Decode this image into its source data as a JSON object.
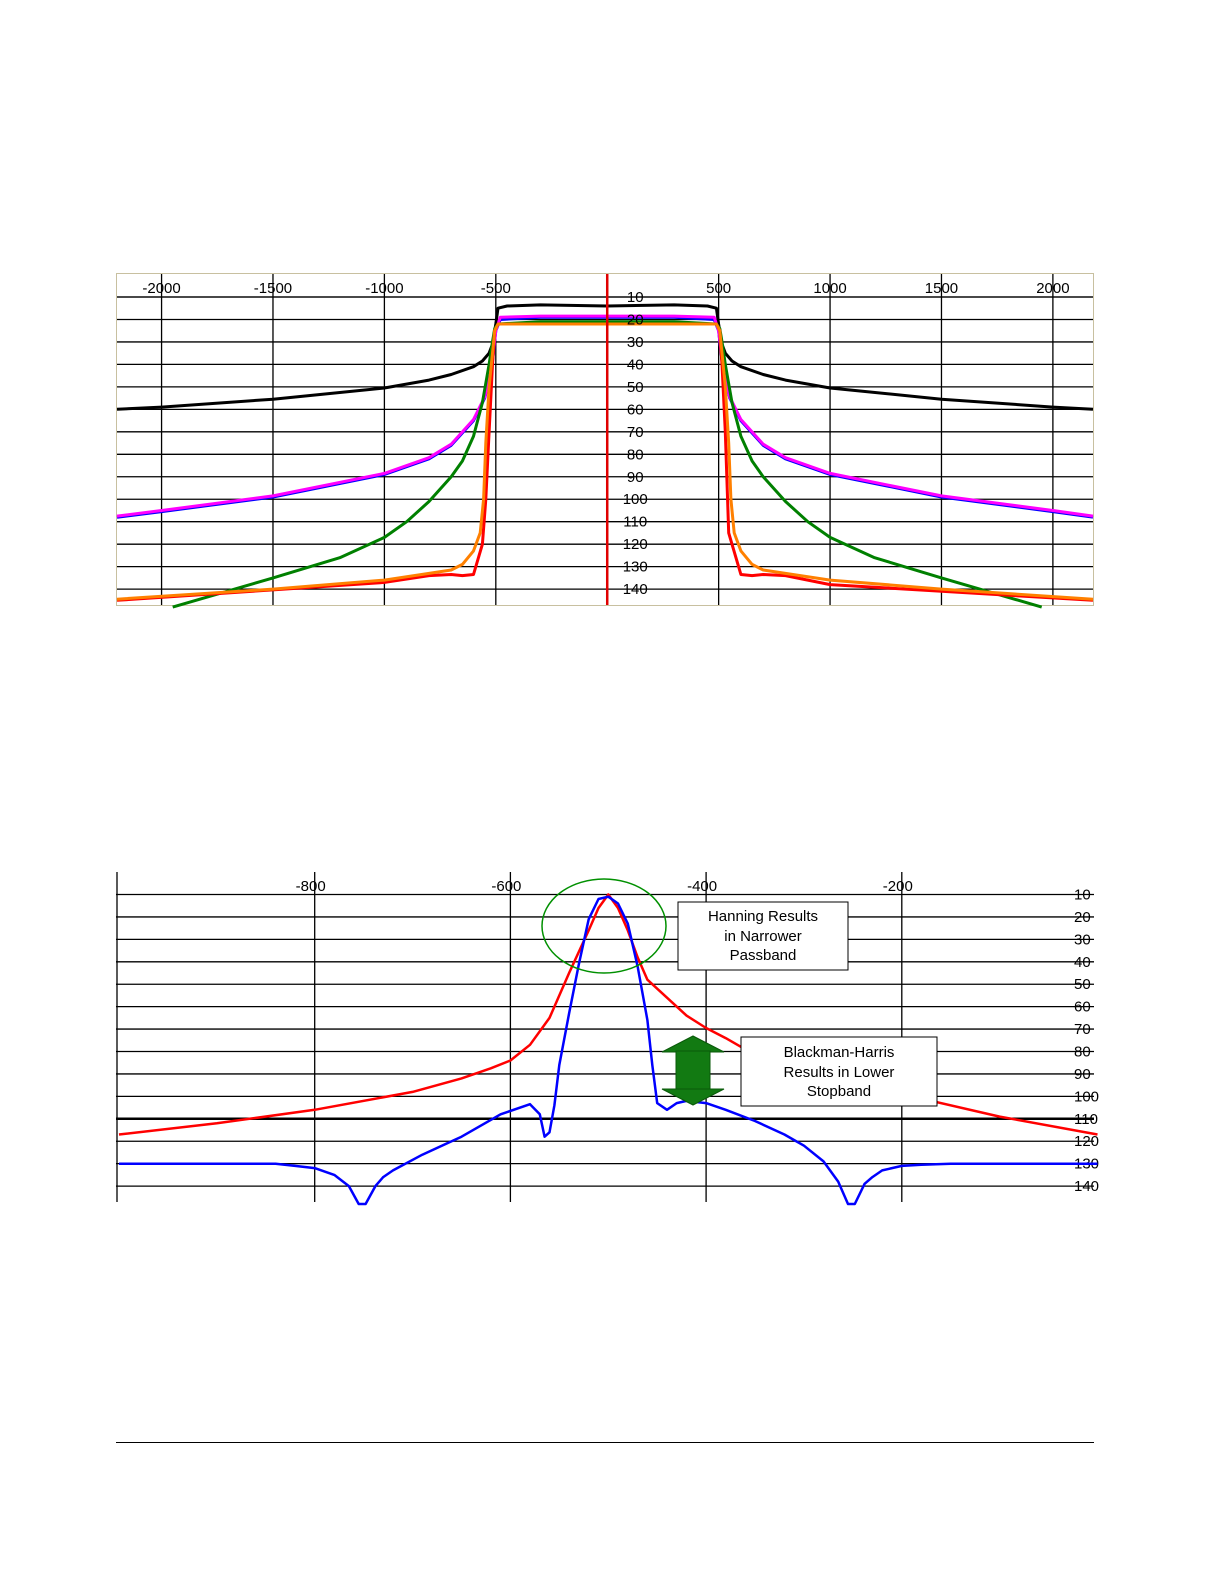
{
  "page": {
    "charts": [
      {
        "id": "top",
        "description_hidden": true
      },
      {
        "id": "bottom",
        "description_hidden": true
      }
    ]
  },
  "chart_data": [
    {
      "type": "line",
      "title": "",
      "xlabel": "",
      "ylabel": "",
      "xlim": [
        -2200,
        2180
      ],
      "ylim": [
        0,
        148
      ],
      "x_ticks": [
        -2000,
        -1500,
        -1000,
        -500,
        500,
        1000,
        1500,
        2000
      ],
      "x_tick_labels": [
        "-2000",
        "-1500",
        "-1000",
        "-500",
        "500",
        "1000",
        "1500",
        "2000"
      ],
      "y_ticks": [
        10,
        20,
        30,
        40,
        50,
        60,
        70,
        80,
        90,
        100,
        110,
        120,
        130,
        140
      ],
      "y_tick_labels": [
        "10",
        "20",
        "30",
        "40",
        "50",
        "60",
        "70",
        "80",
        "90",
        "100",
        "110",
        "120",
        "130",
        "140"
      ],
      "y_inverted": true,
      "grid": true,
      "center_marker": {
        "x": 0,
        "color": "#e00000"
      },
      "series": [
        {
          "color": "#000000",
          "x": [
            -2200,
            -2000,
            -1500,
            -1000,
            -800,
            -700,
            -600,
            -560,
            -530,
            -515,
            -500,
            -490,
            -450,
            -300,
            0,
            300,
            450,
            490,
            500,
            515,
            530,
            560,
            600,
            700,
            800,
            1000,
            1500,
            2000,
            2180
          ],
          "y": [
            60,
            59,
            55.5,
            50.5,
            47,
            44.5,
            41,
            38.5,
            35,
            31,
            22,
            15,
            14,
            13.5,
            14,
            13.5,
            14,
            15,
            22,
            31,
            35,
            38.5,
            41,
            44.5,
            47,
            50.5,
            55.5,
            59,
            60
          ]
        },
        {
          "color": "#0000ff",
          "x": [
            -2200,
            -2000,
            -1500,
            -1000,
            -800,
            -700,
            -600,
            -550,
            -520,
            -510,
            -500,
            -480,
            -300,
            0,
            300,
            480,
            500,
            510,
            520,
            550,
            600,
            700,
            800,
            1000,
            1500,
            2000,
            2180
          ],
          "y": [
            108,
            105.5,
            99,
            89,
            82,
            76,
            65,
            55,
            43,
            34,
            25,
            20,
            19,
            19,
            19,
            20,
            25,
            34,
            43,
            55,
            65,
            76,
            82,
            89,
            99,
            105.5,
            108
          ]
        },
        {
          "color": "#ff00ff",
          "x": [
            -2200,
            -2000,
            -1500,
            -1000,
            -800,
            -700,
            -600,
            -550,
            -520,
            -510,
            -500,
            -480,
            -300,
            0,
            300,
            480,
            500,
            510,
            520,
            550,
            600,
            700,
            800,
            1000,
            1500,
            2000,
            2180
          ],
          "y": [
            107.5,
            105,
            98.5,
            88.5,
            81.5,
            75.5,
            64.5,
            54.5,
            42.5,
            33.5,
            25,
            19,
            18.5,
            18.5,
            18.5,
            19,
            25,
            33.5,
            42.5,
            54.5,
            64.5,
            75.5,
            81.5,
            88.5,
            98.5,
            105,
            107.5
          ]
        },
        {
          "color": "#008000",
          "x": [
            -1950,
            -1500,
            -1200,
            -1000,
            -900,
            -800,
            -700,
            -650,
            -600,
            -560,
            -530,
            -515,
            -505,
            -490,
            -300,
            0,
            300,
            490,
            505,
            515,
            530,
            560,
            600,
            650,
            700,
            800,
            900,
            1000,
            1200,
            1500,
            1950
          ],
          "y": [
            148,
            135,
            126,
            117,
            110,
            101,
            90,
            83,
            72,
            57,
            40,
            30,
            24,
            22,
            21,
            21,
            21,
            22,
            24,
            30,
            40,
            57,
            72,
            83,
            90,
            101,
            110,
            117,
            126,
            135,
            148
          ]
        },
        {
          "color": "#ff0000",
          "x": [
            -2200,
            -1000,
            -800,
            -700,
            -650,
            -600,
            -560,
            -545,
            -530,
            -515,
            -505,
            -490,
            -300,
            0,
            300,
            490,
            505,
            515,
            530,
            545,
            600,
            650,
            700,
            800,
            1000,
            2180
          ],
          "y": [
            145,
            137,
            134,
            133.5,
            134,
            133.5,
            120,
            100,
            70,
            40,
            25,
            22,
            22,
            22,
            22,
            22,
            25,
            40,
            70,
            115,
            133.5,
            134,
            133.5,
            134,
            138,
            145
          ]
        },
        {
          "color": "#ff8000",
          "x": [
            -2200,
            -1500,
            -1000,
            -800,
            -700,
            -650,
            -600,
            -570,
            -555,
            -545,
            -530,
            -515,
            -505,
            -490,
            -300,
            0,
            300,
            490,
            505,
            515,
            530,
            545,
            555,
            570,
            600,
            650,
            700,
            800,
            1000,
            1500,
            2180
          ],
          "y": [
            144.5,
            140,
            136,
            133,
            131.5,
            129,
            123,
            115,
            100,
            75,
            50,
            35,
            25,
            22,
            22,
            22,
            22,
            22,
            25,
            35,
            50,
            75,
            100,
            115,
            123,
            129,
            131.5,
            133,
            136,
            140,
            144.5
          ]
        }
      ]
    },
    {
      "type": "line",
      "title": "",
      "xlabel": "",
      "ylabel": "",
      "xlim": [
        -1000,
        0
      ],
      "ylim": [
        0,
        150
      ],
      "x_ticks": [
        -800,
        -600,
        -400,
        -200
      ],
      "x_tick_labels": [
        "-800",
        "-600",
        "-400",
        "-200"
      ],
      "y_ticks": [
        10,
        20,
        30,
        40,
        50,
        60,
        70,
        80,
        90,
        100,
        110,
        120,
        130,
        140
      ],
      "y_tick_labels": [
        "10",
        "20",
        "30",
        "40",
        "50",
        "60",
        "70",
        "80",
        "90",
        "100",
        "110",
        "120",
        "130",
        "140"
      ],
      "y_inverted": true,
      "grid": true,
      "series": [
        {
          "color": "#ff0000",
          "x": [
            -1000,
            -900,
            -800,
            -700,
            -650,
            -620,
            -600,
            -580,
            -560,
            -540,
            -520,
            -510,
            -500,
            -490,
            -480,
            -470,
            -460,
            -440,
            -420,
            -400,
            -380,
            -360,
            -340,
            -300,
            -200,
            -100,
            0
          ],
          "y": [
            117,
            112,
            106,
            98,
            92,
            87.5,
            84,
            77,
            65,
            45,
            26,
            16,
            10,
            16,
            26,
            38,
            48,
            56,
            64,
            69.5,
            74,
            79,
            83,
            88,
            99,
            109,
            117
          ]
        },
        {
          "color": "#0000ff",
          "x": [
            -1000,
            -930,
            -870,
            -840,
            -820,
            -800,
            -780,
            -765,
            -755,
            -748,
            -738,
            -730,
            -720,
            -690,
            -650,
            -610,
            -580,
            -570,
            -565,
            -560,
            -555,
            -550,
            -540,
            -530,
            -520,
            -510,
            -500,
            -490,
            -480,
            -470,
            -460,
            -455,
            -450,
            -440,
            -430,
            -420,
            -400,
            -380,
            -350,
            -320,
            -300,
            -280,
            -265,
            -255,
            -248,
            -238,
            -230,
            -220,
            -200,
            -180,
            -150,
            -100,
            -40,
            0
          ],
          "y": [
            130,
            130,
            130,
            130,
            131,
            132,
            135,
            140,
            148,
            148,
            140,
            136,
            133,
            126,
            118,
            108,
            103.5,
            108,
            118,
            116,
            104,
            86,
            63,
            41,
            21,
            12,
            11,
            14,
            23,
            42,
            66,
            86,
            103,
            106,
            103,
            102,
            103,
            106,
            111,
            117,
            122,
            129,
            138,
            148,
            148,
            139,
            136,
            133,
            131,
            130.5,
            130,
            130,
            130,
            130
          ]
        }
      ],
      "annotations": [
        {
          "text": "Hanning Results\nin Narrower\nPassband"
        },
        {
          "text": "Blackman-Harris\nResults in Lower\nStopband"
        }
      ]
    }
  ],
  "annotations": {
    "hanning": [
      "Hanning Results",
      "in Narrower",
      "Passband"
    ],
    "blackman": [
      "Blackman-Harris",
      "Results in Lower",
      "Stopband"
    ]
  }
}
